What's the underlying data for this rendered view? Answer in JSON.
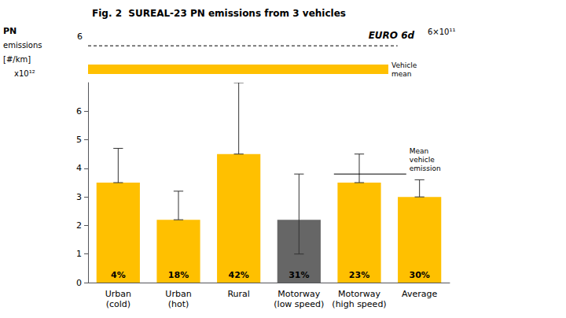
{
  "chart_data": {
    "type": "bar",
    "title": "Fig. 2  SUREAL-23 PN emissions from 3 vehicles",
    "ylabel": "PN\nemissions\n[#/km]\nx10¹²",
    "categories": [
      "Urban\n(cold)",
      "Urban\n(hot)",
      "Rural",
      "Motorway\n(low speed)",
      "Motorway\n(high speed)",
      "Average"
    ],
    "values": [
      3.5,
      2.2,
      4.5,
      2.2,
      3.5,
      3.0
    ],
    "colors": [
      "#FFC000",
      "#FFC000",
      "#FFC000",
      "#666666",
      "#FFC000",
      "#FFC000"
    ],
    "errors_upper": [
      1.2,
      1.0,
      2.5,
      1.6,
      1.0,
      0.6
    ],
    "errors_lower": [
      0.0,
      0.0,
      0.0,
      1.2,
      0.0,
      0.0
    ],
    "percentages": [
      "4%",
      "18%",
      "42%",
      "31%",
      "23%",
      "30%"
    ],
    "ylim": [
      0,
      7
    ],
    "yticks": [
      0,
      1,
      2,
      3,
      4,
      5,
      6
    ],
    "grid": false,
    "limit": {
      "label": "EURO 6d",
      "value_label": "6×10¹¹",
      "tick_label": "6"
    },
    "mean_key": {
      "label": "Vehicle\nmean",
      "color": "#FFC000"
    },
    "mean_line": {
      "y": 3.8,
      "label": "Mean\nvehicle\nemission"
    }
  }
}
